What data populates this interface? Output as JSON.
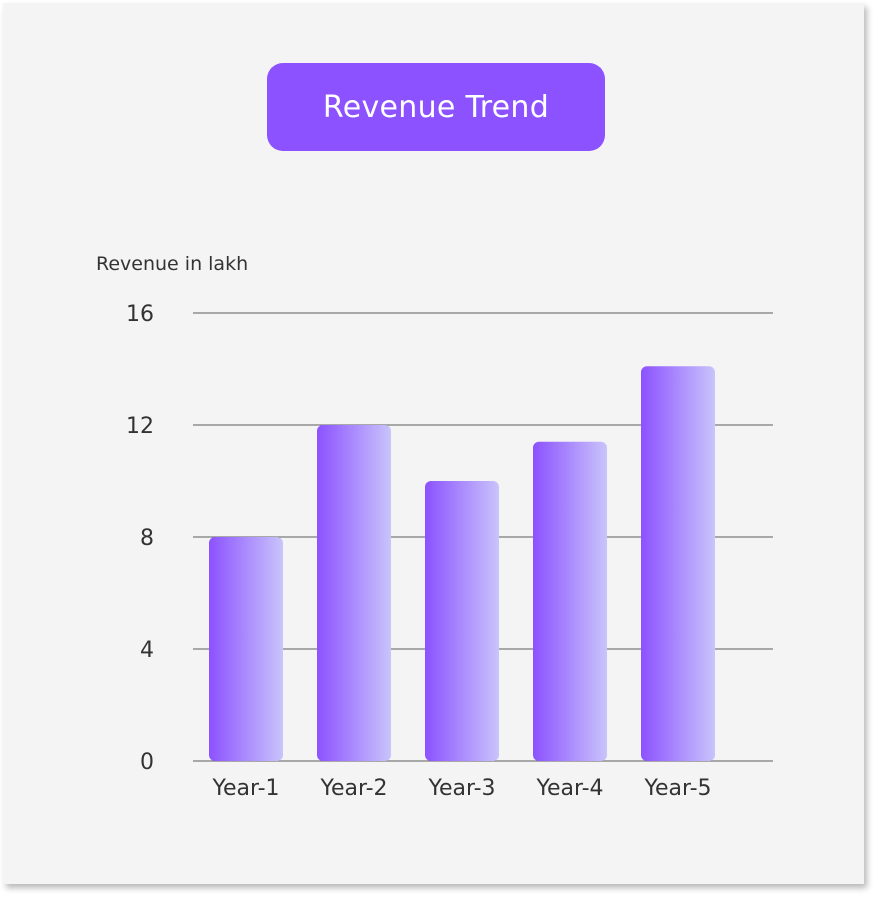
{
  "chart_data": {
    "type": "bar",
    "title": "Revenue Trend",
    "ylabel": "Revenue in lakh",
    "xlabel": "",
    "categories": [
      "Year-1",
      "Year-2",
      "Year-3",
      "Year-4",
      "Year-5"
    ],
    "values": [
      8,
      12,
      10,
      11.4,
      14.1
    ],
    "ylim": [
      0,
      16
    ],
    "yticks": [
      0,
      4,
      8,
      12,
      16
    ],
    "grid": true,
    "legend": "none",
    "colors": {
      "accent": "#8c52ff",
      "bar_start": "#8c52ff",
      "bar_end": "#c9c4fb",
      "grid": "#7a7a7a",
      "text": "#333333",
      "background": "#f4f4f4"
    }
  }
}
